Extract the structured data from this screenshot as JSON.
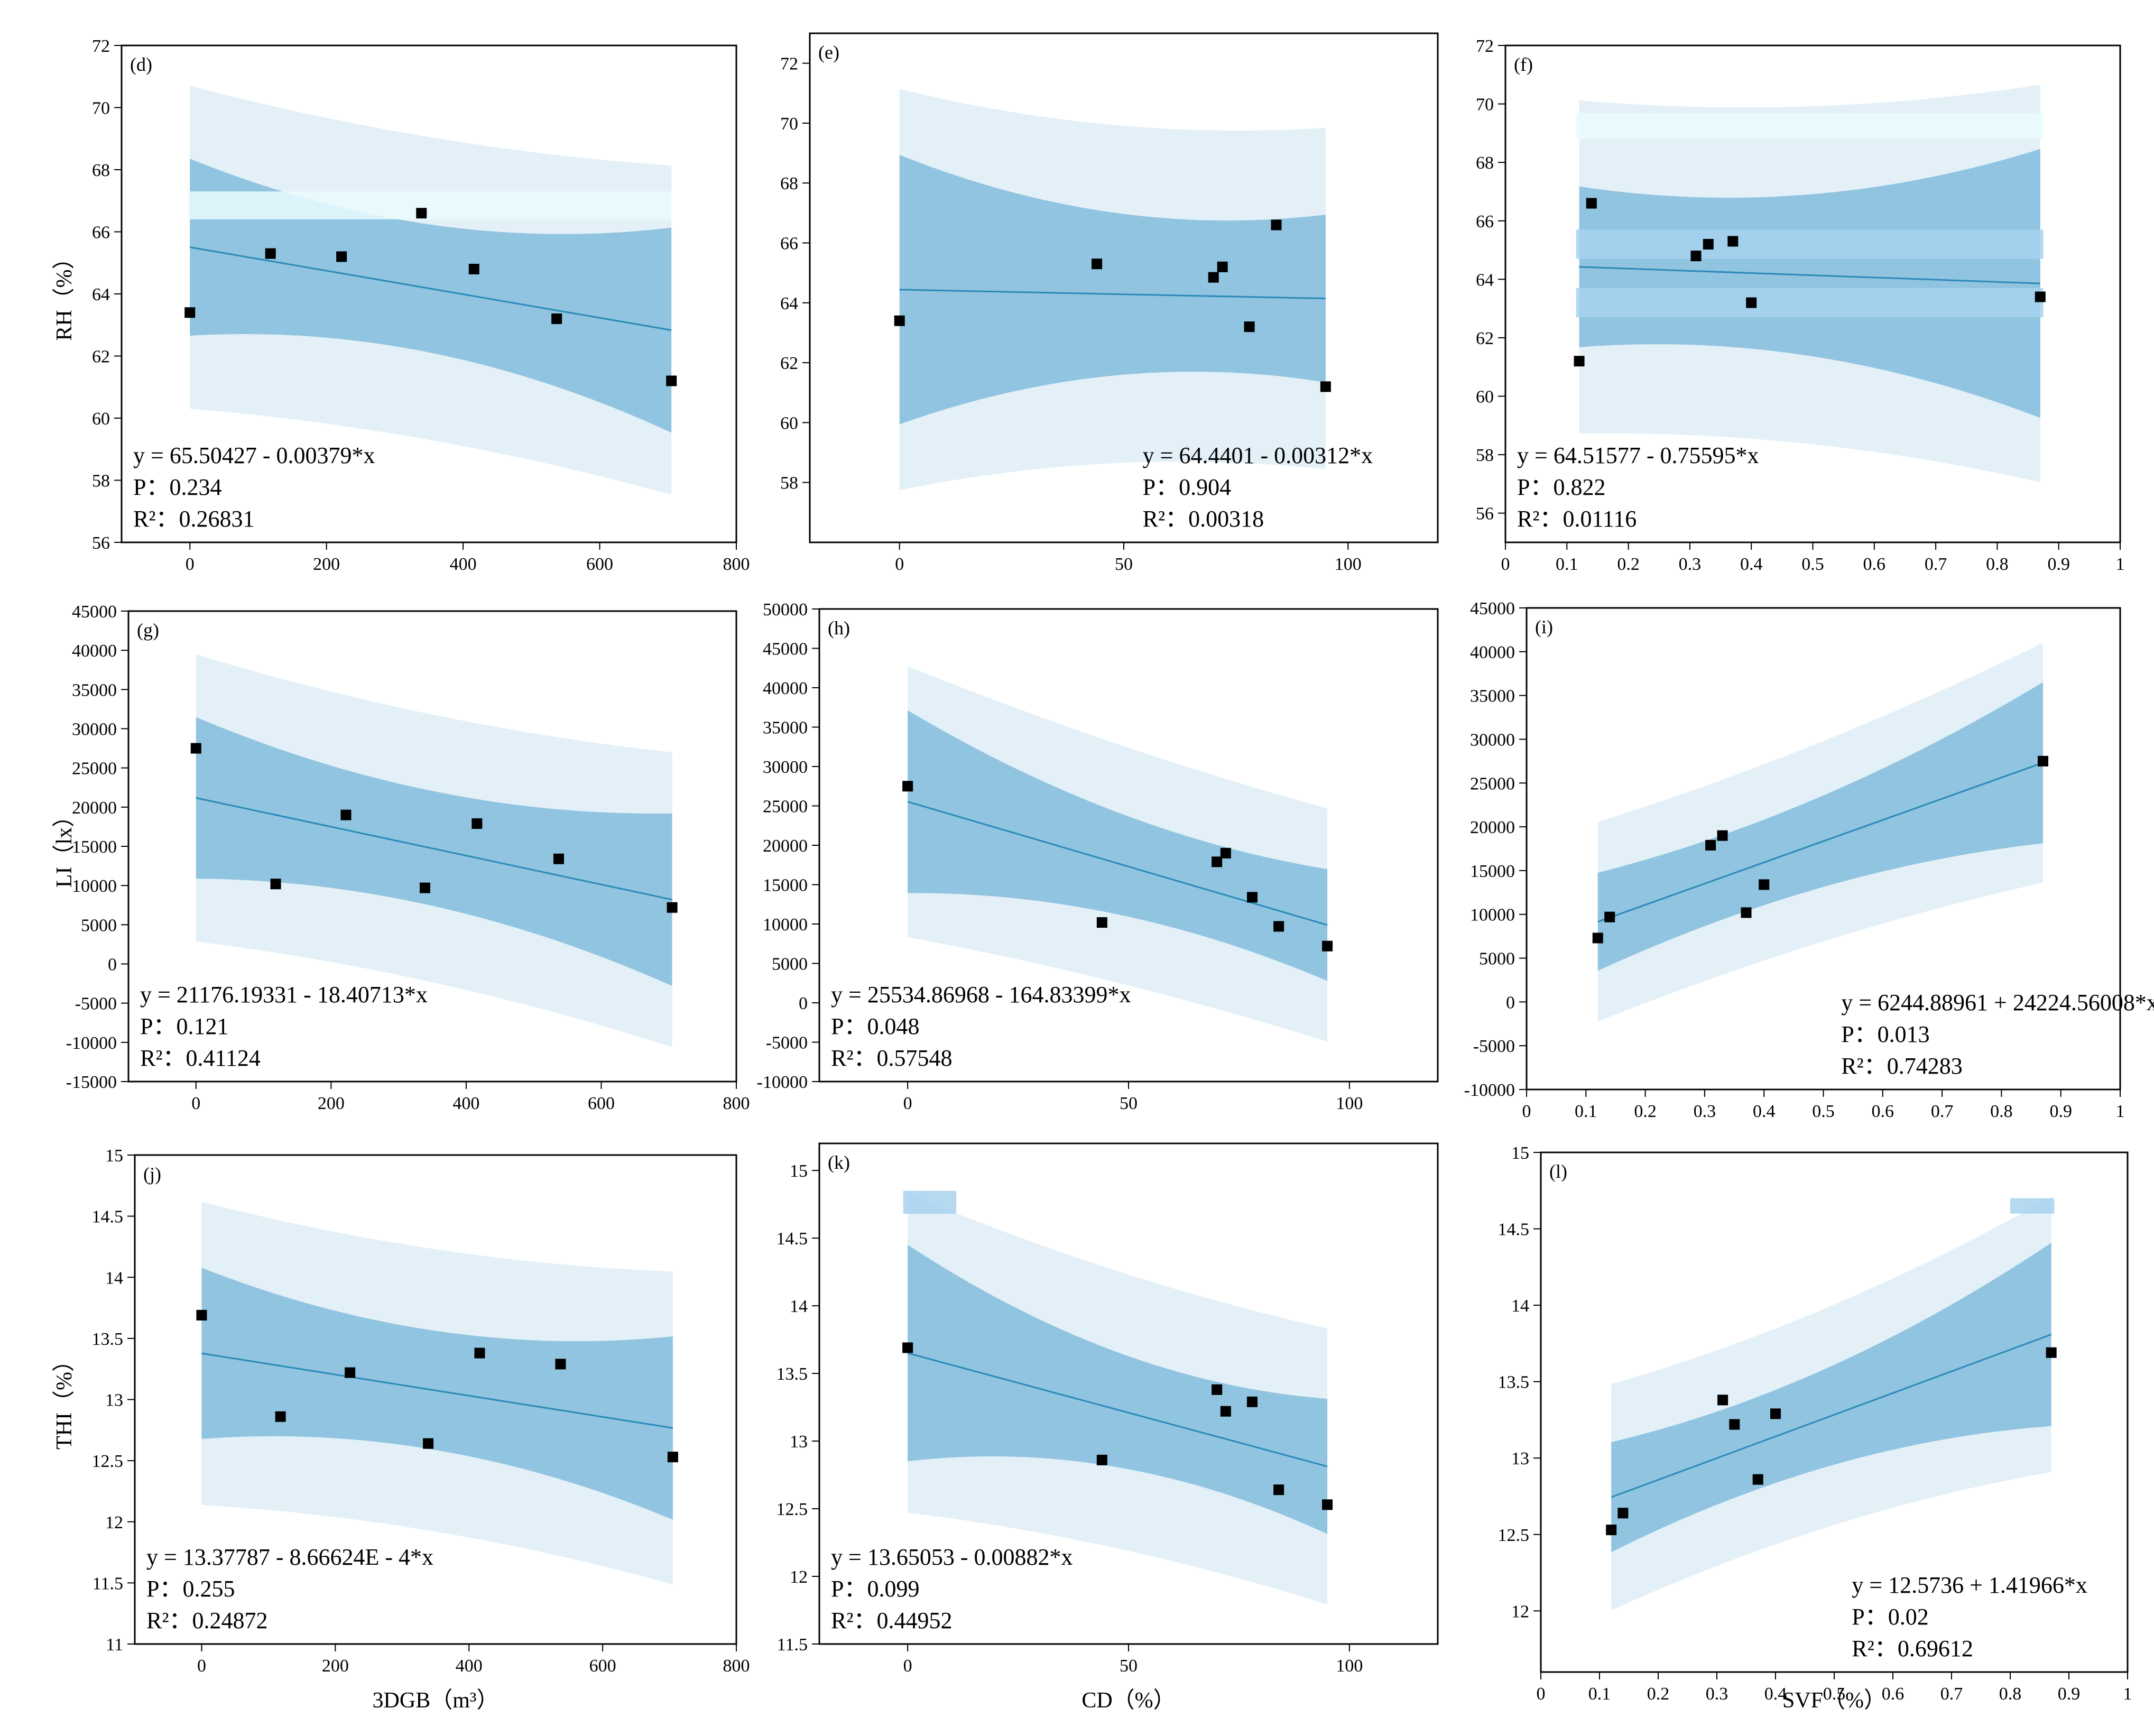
{
  "colors": {
    "outer_band": "#e3f0f7",
    "inner_band": "#90c4e0",
    "line": "#2a8ab8",
    "point": "#000000",
    "highlight": "#eafcfd",
    "highlight_mid": "#a7d2ee"
  },
  "chart_data": [
    {
      "type": "scatter",
      "panel": "(d)",
      "ylabel": "RH（%）",
      "xlabel": "",
      "xlim": [
        -100,
        800
      ],
      "ylim": [
        56,
        72
      ],
      "xticks": [
        0,
        200,
        400,
        600,
        800
      ],
      "yticks": [
        56,
        58,
        60,
        62,
        64,
        66,
        68,
        70,
        72
      ],
      "x": [
        0,
        118,
        222,
        339,
        416,
        537,
        705
      ],
      "y": [
        63.4,
        65.3,
        65.2,
        66.6,
        64.8,
        63.2,
        61.2
      ],
      "intercept": 65.50427,
      "slope": -0.00379,
      "ci": [
        2.85,
        1.05,
        3.3
      ],
      "pi": [
        5.2,
        4.5,
        5.3
      ],
      "equation": "y = 65.50427 - 0.00379*x",
      "p": "P：0.234",
      "r2": "R²：0.26831",
      "eq_pos": "bottom-left",
      "highlights": [
        {
          "y0": 66.4,
          "y1": 67.3,
          "x0": -2,
          "x1": 705
        }
      ]
    },
    {
      "type": "scatter",
      "panel": "(e)",
      "ylabel": "",
      "xlabel": "",
      "xlim": [
        -20,
        120
      ],
      "ylim": [
        56,
        73
      ],
      "xticks": [
        0,
        50,
        100
      ],
      "yticks": [
        58,
        60,
        62,
        64,
        66,
        68,
        70,
        72
      ],
      "x": [
        0,
        44,
        70,
        72,
        78,
        84,
        95
      ],
      "y": [
        63.4,
        65.3,
        64.85,
        65.2,
        63.2,
        66.6,
        61.2
      ],
      "intercept": 64.4401,
      "slope": -0.00312,
      "ci": [
        4.5,
        1.8,
        2.8
      ],
      "pi": [
        6.7,
        5.1,
        5.7
      ],
      "equation": "y = 64.4401 - 0.00312*x",
      "p": "P：0.904",
      "r2": "R²：0.00318",
      "eq_pos": "bottom-right",
      "highlights": []
    },
    {
      "type": "scatter",
      "panel": "(f)",
      "ylabel": "",
      "xlabel": "",
      "xlim": [
        0,
        1
      ],
      "ylim": [
        55,
        72
      ],
      "xticks": [
        0,
        0.1,
        0.2,
        0.3,
        0.4,
        0.5,
        0.6,
        0.7,
        0.8,
        0.9,
        1.0
      ],
      "yticks": [
        56,
        58,
        60,
        62,
        64,
        66,
        68,
        70,
        72
      ],
      "x": [
        0.12,
        0.14,
        0.31,
        0.33,
        0.37,
        0.4,
        0.87
      ],
      "y": [
        61.2,
        66.6,
        64.8,
        65.2,
        65.3,
        63.2,
        63.4
      ],
      "intercept": 64.51577,
      "slope": -0.75595,
      "ci": [
        2.75,
        1.85,
        4.6
      ],
      "pi": [
        5.7,
        5.3,
        6.8
      ],
      "equation": "y = 64.51577 - 0.75595*x",
      "p": "P：0.822",
      "r2": "R²：0.01116",
      "eq_pos": "bottom-left",
      "highlights": [
        {
          "y0": 68.8,
          "y1": 69.7,
          "x0": 0.115,
          "x1": 0.875
        },
        {
          "y0": 64.7,
          "y1": 65.7,
          "x0": 0.115,
          "x1": 0.875
        },
        {
          "y0": 62.7,
          "y1": 63.7,
          "x0": 0.115,
          "x1": 0.875
        }
      ]
    },
    {
      "type": "scatter",
      "panel": "(g)",
      "ylabel": "LI（lx）",
      "xlabel": "",
      "xlim": [
        -100,
        800
      ],
      "ylim": [
        -15000,
        45000
      ],
      "xticks": [
        0,
        200,
        400,
        600,
        800
      ],
      "yticks": [
        -15000,
        -10000,
        -5000,
        0,
        5000,
        10000,
        15000,
        20000,
        25000,
        30000,
        35000,
        40000,
        45000
      ],
      "x": [
        0,
        118,
        222,
        339,
        416,
        537,
        705
      ],
      "y": [
        27500,
        10200,
        19000,
        9700,
        17900,
        13400,
        7200
      ],
      "intercept": 21176.19331,
      "slope": -18.40713,
      "ci": [
        10300,
        4000,
        11000
      ],
      "pi": [
        18300,
        15600,
        18800
      ],
      "equation": "y = 21176.19331 - 18.40713*x",
      "p": "P：0.121",
      "r2": "R²：0.41124",
      "eq_pos": "bottom-left",
      "highlights": []
    },
    {
      "type": "scatter",
      "panel": "(h)",
      "ylabel": "",
      "xlabel": "",
      "xlim": [
        -20,
        120
      ],
      "ylim": [
        -10000,
        50000
      ],
      "xticks": [
        0,
        50,
        100
      ],
      "yticks": [
        -10000,
        -5000,
        0,
        5000,
        10000,
        15000,
        20000,
        25000,
        30000,
        35000,
        40000,
        45000,
        50000
      ],
      "x": [
        0,
        44,
        70,
        72,
        78,
        84,
        95
      ],
      "y": [
        27500,
        10200,
        17900,
        19000,
        13400,
        9700,
        7200
      ],
      "intercept": 25534.86968,
      "slope": -164.83399,
      "ci": [
        11600,
        3600,
        7100
      ],
      "pi": [
        17200,
        14300,
        14800
      ],
      "equation": "y = 25534.86968 - 164.83399*x",
      "p": "P：0.048",
      "r2": "R²：0.57548",
      "eq_pos": "bottom-left",
      "highlights": []
    },
    {
      "type": "scatter",
      "panel": "(i)",
      "ylabel": "",
      "xlabel": "",
      "xlim": [
        0,
        1
      ],
      "ylim": [
        -10000,
        45000
      ],
      "xticks": [
        0,
        0.1,
        0.2,
        0.3,
        0.4,
        0.5,
        0.6,
        0.7,
        0.8,
        0.9,
        1.0
      ],
      "yticks": [
        -10000,
        -5000,
        0,
        5000,
        10000,
        15000,
        20000,
        25000,
        30000,
        35000,
        40000,
        45000
      ],
      "x": [
        0.12,
        0.14,
        0.31,
        0.33,
        0.37,
        0.4,
        0.87
      ],
      "y": [
        7300,
        9700,
        17900,
        19000,
        10200,
        13400,
        27500
      ],
      "intercept": 6244.88961,
      "slope": 24224.56008,
      "ci": [
        5600,
        3000,
        9200
      ],
      "pi": [
        11400,
        10300,
        13700
      ],
      "equation": "y = 6244.88961 + 24224.56008*x",
      "p": "P：0.013",
      "r2": "R²：0.74283",
      "eq_pos": "bottom-right",
      "highlights": []
    },
    {
      "type": "scatter",
      "panel": "(j)",
      "ylabel": "THI（%）",
      "xlabel": "3DGB（m³）",
      "xlim": [
        -100,
        800
      ],
      "ylim": [
        11,
        15
      ],
      "xticks": [
        0,
        200,
        400,
        600,
        800
      ],
      "yticks": [
        11.0,
        11.5,
        12.0,
        12.5,
        13.0,
        13.5,
        14.0,
        14.5,
        15.0
      ],
      "x": [
        0,
        118,
        222,
        339,
        416,
        537,
        705
      ],
      "y": [
        13.69,
        12.86,
        13.22,
        12.64,
        13.38,
        13.29,
        12.53
      ],
      "intercept": 13.37787,
      "slope": -0.000866624,
      "ci": [
        0.7,
        0.25,
        0.75
      ],
      "pi": [
        1.24,
        1.05,
        1.28
      ],
      "equation": "y = 13.37787 - 8.66624E - 4*x",
      "p": "P：0.255",
      "r2": "R²：0.24872",
      "eq_pos": "bottom-left",
      "highlights": []
    },
    {
      "type": "scatter",
      "panel": "(k)",
      "ylabel": "",
      "xlabel": "CD（%）",
      "xlim": [
        -20,
        120
      ],
      "ylim": [
        11.5,
        15.2
      ],
      "xticks": [
        0,
        50,
        100
      ],
      "yticks": [
        11.5,
        12.0,
        12.5,
        13.0,
        13.5,
        14.0,
        14.5,
        15.0
      ],
      "x": [
        0,
        44,
        70,
        72,
        78,
        84,
        95
      ],
      "y": [
        13.69,
        12.86,
        13.38,
        13.22,
        13.29,
        12.64,
        12.53
      ],
      "intercept": 13.65053,
      "slope": -0.00882,
      "ci": [
        0.8,
        0.2,
        0.5
      ],
      "pi": [
        1.18,
        0.95,
        1.02
      ],
      "equation": "y = 13.65053 - 0.00882*x",
      "p": "P：0.099",
      "r2": "R²：0.44952",
      "eq_pos": "bottom-left",
      "highlights": [
        {
          "y0": 14.68,
          "y1": 14.85,
          "x0": -1,
          "x1": 11
        }
      ]
    },
    {
      "type": "scatter",
      "panel": "(l)",
      "ylabel": "",
      "xlabel": "SVF（%）",
      "xlim": [
        0,
        1
      ],
      "ylim": [
        11.6,
        15
      ],
      "xticks": [
        0,
        0.1,
        0.2,
        0.3,
        0.4,
        0.5,
        0.6,
        0.7,
        0.8,
        0.9,
        1.0
      ],
      "yticks": [
        12.0,
        12.5,
        13.0,
        13.5,
        14.0,
        14.5,
        15.0
      ],
      "x": [
        0.12,
        0.14,
        0.31,
        0.33,
        0.37,
        0.4,
        0.87
      ],
      "y": [
        12.53,
        12.64,
        13.38,
        13.22,
        12.86,
        13.29,
        13.69
      ],
      "intercept": 12.5736,
      "slope": 1.41966,
      "ci": [
        0.36,
        0.17,
        0.6
      ],
      "pi": [
        0.74,
        0.62,
        0.9
      ],
      "equation": "y = 12.5736 + 1.41966*x",
      "p": "P：0.02",
      "r2": "R²：0.69612",
      "eq_pos": "bottom-right",
      "highlights": [
        {
          "y0": 14.6,
          "y1": 14.7,
          "x0": 0.8,
          "x1": 0.875
        }
      ]
    }
  ]
}
